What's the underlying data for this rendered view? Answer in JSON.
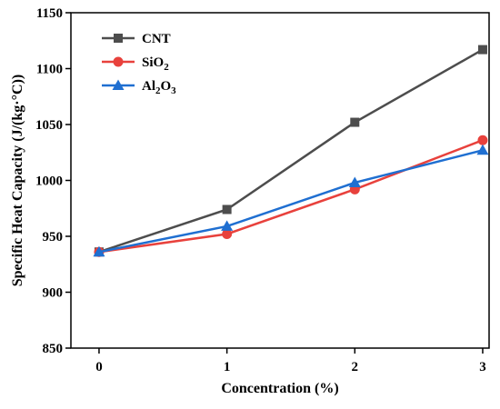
{
  "chart_data": {
    "type": "line",
    "title": "",
    "xlabel": "Concentration (%)",
    "ylabel": "Specific Heat Capacity (J/(kg·°C))",
    "categories": [
      "0",
      "1",
      "2",
      "3"
    ],
    "x": [
      0,
      1,
      2,
      3
    ],
    "xlim": [
      -0.22,
      3.05
    ],
    "ylim": [
      850,
      1150
    ],
    "y_ticks": [
      850,
      900,
      950,
      1000,
      1050,
      1100,
      1150
    ],
    "grid": false,
    "legend_position": "top-left",
    "series": [
      {
        "name": "CNT",
        "label_main": "CNT",
        "sub": [
          "",
          ""
        ],
        "values": [
          936,
          974,
          1052,
          1117
        ],
        "color": "#4d4d4d",
        "marker": "square"
      },
      {
        "name": "SiO2",
        "label_main": "SiO",
        "sub": [
          "2",
          ""
        ],
        "values": [
          936,
          952,
          992,
          1036
        ],
        "color": "#e8413c",
        "marker": "circle"
      },
      {
        "name": "Al2O3",
        "label_main": "Al",
        "sub": [
          "2",
          "3"
        ],
        "values": [
          936,
          959,
          998,
          1027
        ],
        "color": "#1f6fd1",
        "marker": "triangle"
      }
    ]
  }
}
